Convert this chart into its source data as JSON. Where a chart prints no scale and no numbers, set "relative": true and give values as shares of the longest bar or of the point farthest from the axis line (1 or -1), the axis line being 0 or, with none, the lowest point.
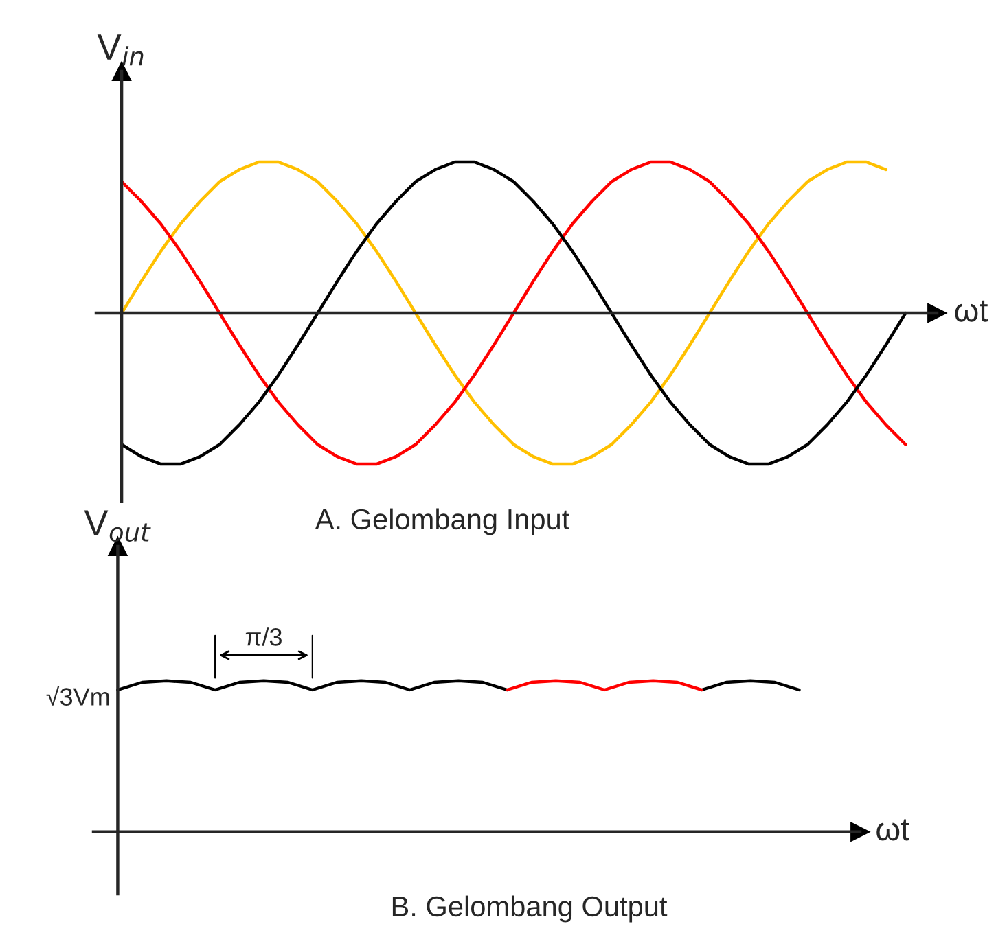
{
  "chart_data": [
    {
      "type": "line",
      "relative": true,
      "title": "A. Gelombang Input",
      "xlabel": "ωt",
      "ylabel": "V$_{in}$",
      "categories": [
        null,
        null,
        null,
        null,
        null,
        null,
        null,
        null,
        null,
        null,
        null,
        null,
        null,
        null,
        null,
        null,
        null,
        null,
        null,
        null,
        null,
        null,
        null,
        null,
        null,
        null,
        null,
        null,
        null,
        null,
        null,
        null,
        null,
        null,
        null,
        null,
        null,
        null,
        null,
        null,
        null,
        null
      ],
      "series": [
        {
          "color": "#ffc000",
          "values": [
            0,
            0.21,
            0.41,
            0.59,
            0.74,
            0.87,
            0.95,
            1,
            1,
            0.95,
            0.87,
            0.74,
            0.59,
            0.41,
            0.21,
            0,
            -0.21,
            -0.41,
            -0.59,
            -0.74,
            -0.87,
            -0.95,
            -1,
            -1,
            -0.95,
            -0.87,
            -0.74,
            -0.59,
            -0.41,
            -0.21,
            0,
            0.21,
            0.41,
            0.59,
            0.74,
            0.87,
            0.95,
            1,
            1,
            0.95,
            null,
            null
          ]
        },
        {
          "color": "#ff0000",
          "values": [
            0.87,
            0.74,
            0.59,
            0.41,
            0.21,
            0,
            -0.21,
            -0.41,
            -0.59,
            -0.74,
            -0.87,
            -0.95,
            -1,
            -1,
            -0.95,
            -0.87,
            -0.74,
            -0.59,
            -0.41,
            -0.21,
            0,
            0.21,
            0.41,
            0.59,
            0.74,
            0.87,
            0.95,
            1,
            1,
            0.95,
            0.87,
            0.74,
            0.59,
            0.41,
            0.21,
            0,
            -0.21,
            -0.41,
            -0.59,
            -0.74,
            -0.87,
            null
          ]
        },
        {
          "color": "#000000",
          "values": [
            -0.87,
            -0.95,
            -1,
            -1,
            -0.95,
            -0.87,
            -0.74,
            -0.59,
            -0.41,
            -0.21,
            0,
            0.21,
            0.41,
            0.59,
            0.74,
            0.87,
            0.95,
            1,
            1,
            0.95,
            0.87,
            0.74,
            0.59,
            0.41,
            0.21,
            0,
            -0.21,
            -0.41,
            -0.59,
            -0.74,
            -0.87,
            -0.95,
            -1,
            -1,
            -0.95,
            -0.87,
            -0.74,
            -0.59,
            -0.41,
            -0.21,
            0,
            null
          ]
        }
      ]
    },
    {
      "type": "line",
      "relative": true,
      "title": "B. Gelombang Output",
      "xlabel": "ωt",
      "ylabel": "V$_{out}$",
      "annotations": [
        "π/3",
        "√3Vm"
      ],
      "categories": [
        null,
        null,
        null,
        null,
        null,
        null,
        null,
        null,
        null,
        null,
        null,
        null,
        null,
        null,
        null,
        null,
        null,
        null,
        null,
        null,
        null,
        null,
        null,
        null,
        null,
        null,
        null,
        null,
        null
      ],
      "series": [
        {
          "color": "#000000",
          "values": [
            0.94,
            0.99,
            1,
            0.99,
            0.94,
            0.99,
            1,
            0.99,
            0.94,
            0.99,
            1,
            0.99,
            0.94,
            0.99,
            1,
            0.99,
            0.94,
            null,
            null,
            null,
            null,
            null,
            null,
            null,
            0.94,
            0.99,
            1,
            0.99,
            0.94
          ]
        },
        {
          "color": "#ff0000",
          "values": [
            null,
            null,
            null,
            null,
            null,
            null,
            null,
            null,
            null,
            null,
            null,
            null,
            null,
            null,
            null,
            null,
            0.94,
            0.99,
            1,
            0.99,
            0.94,
            0.99,
            1,
            0.99,
            0.94,
            null,
            null,
            null,
            null
          ]
        }
      ]
    }
  ]
}
